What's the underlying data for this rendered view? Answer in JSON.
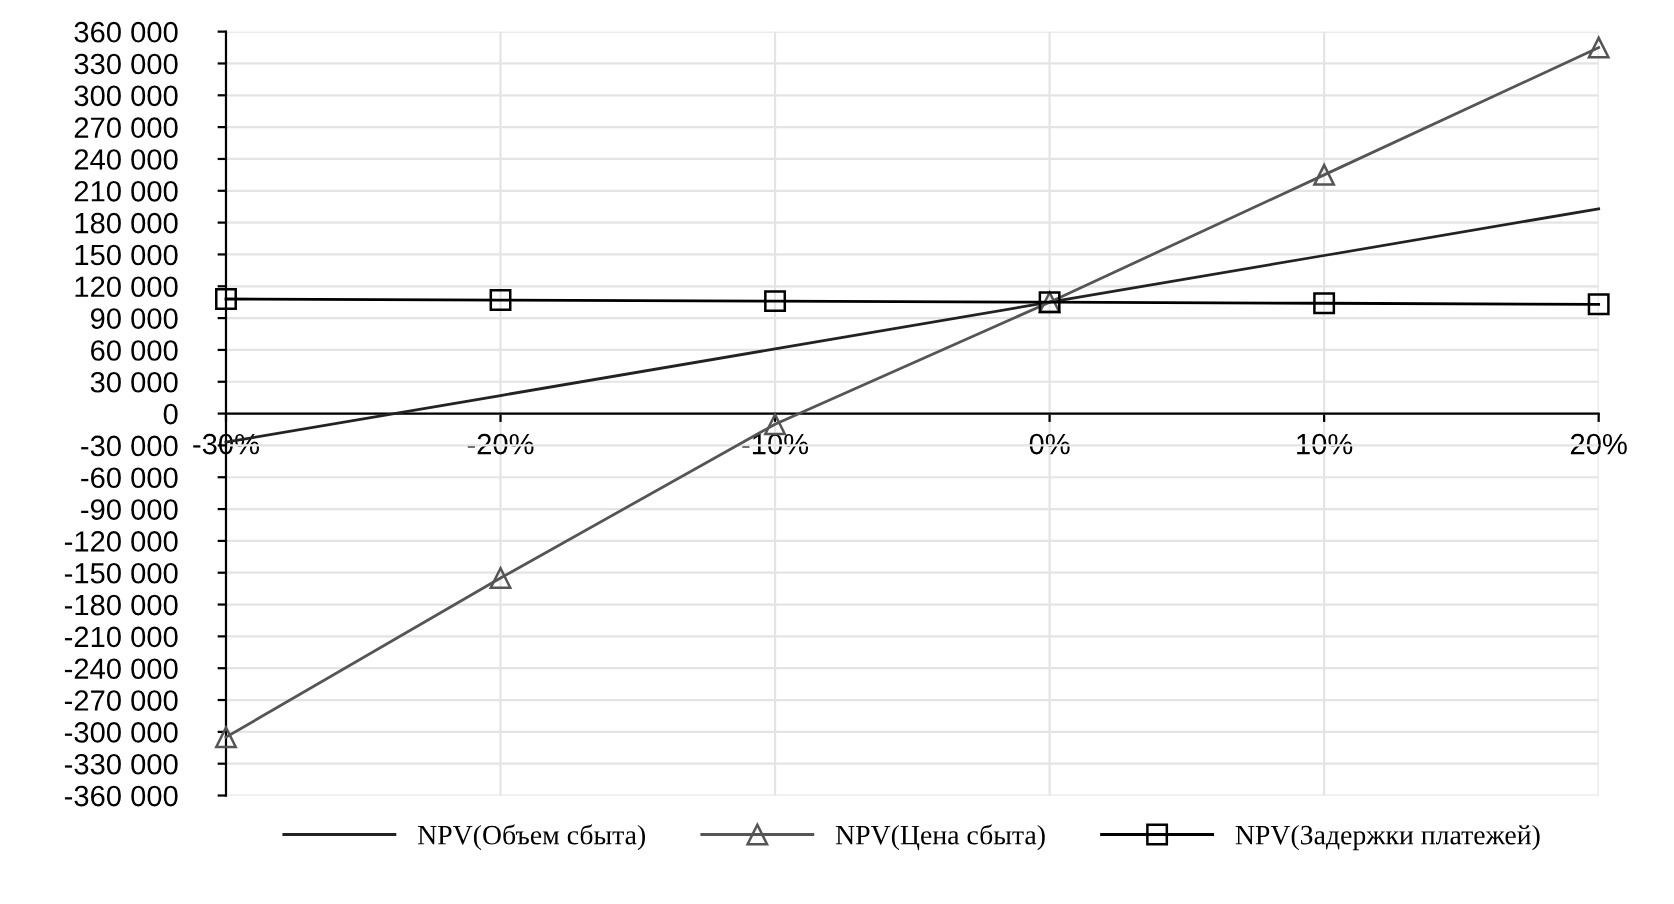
{
  "chart_data": {
    "type": "line",
    "x": [
      -30,
      -20,
      -10,
      0,
      10,
      20
    ],
    "series": [
      {
        "name": "NPV(Объем сбыта)",
        "color": "#222222",
        "marker": "none",
        "values": [
          -27000,
          17000,
          61000,
          105000,
          149000,
          193000
        ]
      },
      {
        "name": "NPV(Цена сбыта)",
        "color": "#555555",
        "marker": "triangle",
        "values": [
          -305000,
          -155000,
          -10000,
          105000,
          225000,
          345000
        ]
      },
      {
        "name": "NPV(Задержки платежей)",
        "color": "#000000",
        "marker": "square",
        "values": [
          108000,
          107000,
          106000,
          105000,
          104000,
          103000
        ]
      }
    ],
    "xlim": [
      -30,
      20
    ],
    "xticks": [
      {
        "value": -30,
        "label": "-30%"
      },
      {
        "value": -20,
        "label": "-20%"
      },
      {
        "value": -10,
        "label": "-10%"
      },
      {
        "value": 0,
        "label": "0%"
      },
      {
        "value": 10,
        "label": "10%"
      },
      {
        "value": 20,
        "label": "20%"
      }
    ],
    "ylim": [
      -360000,
      360000
    ],
    "yticks": [
      {
        "value": -360000,
        "label": "-360 000"
      },
      {
        "value": -330000,
        "label": "-330 000"
      },
      {
        "value": -300000,
        "label": "-300 000"
      },
      {
        "value": -270000,
        "label": "-270 000"
      },
      {
        "value": -240000,
        "label": "-240 000"
      },
      {
        "value": -210000,
        "label": "-210 000"
      },
      {
        "value": -180000,
        "label": "-180 000"
      },
      {
        "value": -150000,
        "label": "-150 000"
      },
      {
        "value": -120000,
        "label": "-120 000"
      },
      {
        "value": -90000,
        "label": "-90 000"
      },
      {
        "value": -60000,
        "label": "-60 000"
      },
      {
        "value": -30000,
        "label": "-30 000"
      },
      {
        "value": 0,
        "label": "0"
      },
      {
        "value": 30000,
        "label": "30 000"
      },
      {
        "value": 60000,
        "label": "60 000"
      },
      {
        "value": 90000,
        "label": "90 000"
      },
      {
        "value": 120000,
        "label": "120 000"
      },
      {
        "value": 150000,
        "label": "150 000"
      },
      {
        "value": 180000,
        "label": "180 000"
      },
      {
        "value": 210000,
        "label": "210 000"
      },
      {
        "value": 240000,
        "label": "240 000"
      },
      {
        "value": 270000,
        "label": "270 000"
      },
      {
        "value": 300000,
        "label": "300 000"
      },
      {
        "value": 330000,
        "label": "330 000"
      },
      {
        "value": 360000,
        "label": "360 000"
      }
    ],
    "grid": true,
    "legend": "bottom",
    "line_style": "solid"
  }
}
